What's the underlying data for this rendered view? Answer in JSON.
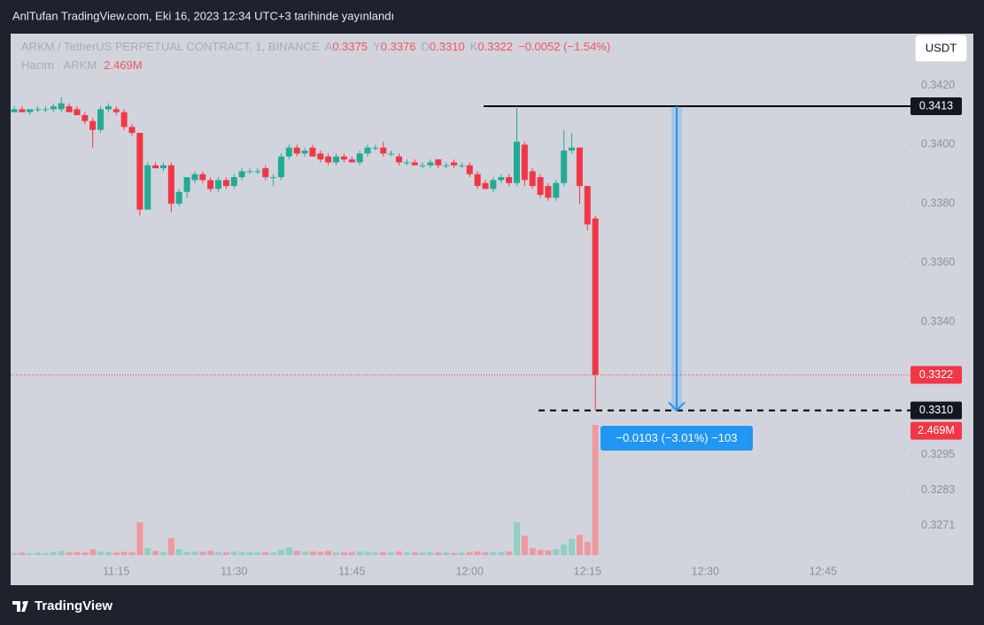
{
  "header": {
    "caption": "AnlTufan TradingView.com, Eki 16, 2023 12:34 UTC+3 tarihinde yayınlandı",
    "brand": "TradingView"
  },
  "chart_data": {
    "type": "candlestick",
    "title": "ARKM / TetherUS PERPETUAL CONTRACT, 1, BINANCE",
    "currency": "USDT",
    "legend": [
      {
        "label": "A",
        "value": 0.3375
      },
      {
        "label": "Y",
        "value": 0.3376
      },
      {
        "label": "D",
        "value": 0.331,
        "value_label": "0.3310"
      },
      {
        "label": "K",
        "value": 0.3322
      }
    ],
    "change_label": "−0.0052 (−1.54%)",
    "up_color": "#22ab94",
    "down_color": "#f23645",
    "x": [
      "11:02",
      "11:03",
      "11:04",
      "11:05",
      "11:06",
      "11:07",
      "11:08",
      "11:09",
      "11:10",
      "11:11",
      "11:12",
      "11:13",
      "11:14",
      "11:15",
      "11:16",
      "11:17",
      "11:18",
      "11:19",
      "11:20",
      "11:21",
      "11:22",
      "11:23",
      "11:24",
      "11:25",
      "11:26",
      "11:27",
      "11:28",
      "11:29",
      "11:30",
      "11:31",
      "11:32",
      "11:33",
      "11:34",
      "11:35",
      "11:36",
      "11:37",
      "11:38",
      "11:39",
      "11:40",
      "11:41",
      "11:42",
      "11:43",
      "11:44",
      "11:45",
      "11:46",
      "11:47",
      "11:48",
      "11:49",
      "11:50",
      "11:51",
      "11:52",
      "11:53",
      "11:54",
      "11:55",
      "11:56",
      "11:57",
      "11:58",
      "11:59",
      "12:00",
      "12:01",
      "12:02",
      "12:03",
      "12:04",
      "12:05",
      "12:06",
      "12:07",
      "12:08",
      "12:09",
      "12:10",
      "12:11",
      "12:12",
      "12:13",
      "12:14",
      "12:15",
      "12:16"
    ],
    "open": [
      0.3411,
      0.3412,
      0.3411,
      0.3412,
      0.3412,
      0.3412,
      0.3412,
      0.3413,
      0.3412,
      0.341,
      0.3408,
      0.3405,
      0.3412,
      0.3412,
      0.3411,
      0.3406,
      0.3404,
      0.3378,
      0.3393,
      0.3392,
      0.3393,
      0.338,
      0.3384,
      0.3388,
      0.339,
      0.3388,
      0.3385,
      0.3388,
      0.3386,
      0.3389,
      0.3391,
      0.3391,
      0.3392,
      0.3389,
      0.3389,
      0.3396,
      0.3399,
      0.3397,
      0.3399,
      0.3397,
      0.3396,
      0.3394,
      0.3396,
      0.3395,
      0.3394,
      0.3397,
      0.3399,
      0.3399,
      0.3397,
      0.3396,
      0.3394,
      0.3394,
      0.3393,
      0.3393,
      0.3395,
      0.3393,
      0.3394,
      0.3393,
      0.3393,
      0.339,
      0.3387,
      0.3385,
      0.3388,
      0.3389,
      0.3387,
      0.34,
      0.3391,
      0.3389,
      0.3386,
      0.3382,
      0.3387,
      0.3398,
      0.3399,
      0.3386,
      0.3375
    ],
    "high": [
      0.3413,
      0.3413,
      0.3412,
      0.3413,
      0.3413,
      0.3414,
      0.3416,
      0.3414,
      0.3413,
      0.3411,
      0.3409,
      0.3413,
      0.3414,
      0.3413,
      0.3412,
      0.3407,
      0.3404,
      0.3394,
      0.3394,
      0.3394,
      0.3394,
      0.3385,
      0.3389,
      0.3391,
      0.3391,
      0.3389,
      0.3389,
      0.3389,
      0.339,
      0.3392,
      0.3392,
      0.3392,
      0.3393,
      0.339,
      0.3397,
      0.34,
      0.34,
      0.3399,
      0.34,
      0.3398,
      0.3397,
      0.3397,
      0.3397,
      0.3396,
      0.3398,
      0.34,
      0.34,
      0.3401,
      0.3398,
      0.3397,
      0.3395,
      0.3395,
      0.3394,
      0.3395,
      0.3395,
      0.3394,
      0.3395,
      0.3394,
      0.3394,
      0.3391,
      0.3388,
      0.3389,
      0.339,
      0.339,
      0.3413,
      0.3401,
      0.3392,
      0.339,
      0.3387,
      0.3388,
      0.3405,
      0.3404,
      0.3399,
      0.3386,
      0.3376
    ],
    "low": [
      0.3411,
      0.3411,
      0.341,
      0.3411,
      0.3411,
      0.3411,
      0.3411,
      0.3411,
      0.341,
      0.3407,
      0.3399,
      0.3404,
      0.3411,
      0.341,
      0.3405,
      0.3403,
      0.3376,
      0.3378,
      0.3392,
      0.3391,
      0.3377,
      0.3379,
      0.3382,
      0.3387,
      0.3387,
      0.3384,
      0.3384,
      0.3385,
      0.3385,
      0.3388,
      0.339,
      0.339,
      0.3388,
      0.3386,
      0.3388,
      0.3395,
      0.3396,
      0.3396,
      0.3396,
      0.3394,
      0.3393,
      0.3393,
      0.3394,
      0.3394,
      0.3393,
      0.3396,
      0.3398,
      0.3396,
      0.3396,
      0.3393,
      0.3393,
      0.3393,
      0.3392,
      0.3392,
      0.3392,
      0.3392,
      0.3392,
      0.3392,
      0.3389,
      0.3385,
      0.3385,
      0.3384,
      0.3387,
      0.3386,
      0.3386,
      0.3386,
      0.3385,
      0.3382,
      0.3381,
      0.3381,
      0.3386,
      0.3397,
      0.338,
      0.3371,
      0.331
    ],
    "close": [
      0.3412,
      0.3411,
      0.3412,
      0.3412,
      0.3412,
      0.3413,
      0.3414,
      0.3411,
      0.341,
      0.3408,
      0.3405,
      0.3412,
      0.3413,
      0.3411,
      0.3406,
      0.3404,
      0.3378,
      0.3393,
      0.3392,
      0.3393,
      0.338,
      0.3384,
      0.3389,
      0.339,
      0.3388,
      0.3385,
      0.3388,
      0.3386,
      0.3389,
      0.3391,
      0.3391,
      0.3391,
      0.3389,
      0.3389,
      0.3396,
      0.3399,
      0.3397,
      0.3398,
      0.3396,
      0.3395,
      0.3394,
      0.3396,
      0.3395,
      0.3394,
      0.3397,
      0.3399,
      0.3399,
      0.3397,
      0.3397,
      0.3394,
      0.3394,
      0.3393,
      0.3393,
      0.3394,
      0.3393,
      0.3393,
      0.3393,
      0.3393,
      0.339,
      0.3386,
      0.3385,
      0.3388,
      0.3389,
      0.3387,
      0.3401,
      0.3388,
      0.3386,
      0.3383,
      0.3382,
      0.3387,
      0.3398,
      0.3399,
      0.3386,
      0.3373,
      0.3322
    ],
    "volume": {
      "name": "Hacim · ARKM",
      "up_color": "#8fcfc4",
      "down_color": "#f0989f",
      "values": [
        40000,
        45000,
        40000,
        50000,
        40000,
        60000,
        80000,
        50000,
        60000,
        50000,
        110000,
        70000,
        60000,
        50000,
        60000,
        50000,
        620000,
        130000,
        80000,
        60000,
        320000,
        110000,
        60000,
        70000,
        60000,
        80000,
        60000,
        50000,
        70000,
        60000,
        50000,
        50000,
        60000,
        50000,
        100000,
        150000,
        80000,
        60000,
        70000,
        60000,
        80000,
        50000,
        50000,
        60000,
        70000,
        60000,
        50000,
        60000,
        50000,
        70000,
        50000,
        50000,
        50000,
        60000,
        50000,
        50000,
        40000,
        50000,
        60000,
        70000,
        50000,
        60000,
        60000,
        70000,
        620000,
        370000,
        130000,
        100000,
        90000,
        110000,
        200000,
        310000,
        380000,
        250000,
        2469000
      ],
      "value_labels": [
        null,
        null,
        null,
        null,
        null,
        null,
        null,
        null,
        null,
        null,
        null,
        null,
        null,
        null,
        null,
        null,
        null,
        null,
        null,
        null,
        null,
        null,
        null,
        null,
        null,
        null,
        null,
        null,
        null,
        null,
        null,
        null,
        null,
        null,
        null,
        null,
        null,
        null,
        null,
        null,
        null,
        null,
        null,
        null,
        null,
        null,
        null,
        null,
        null,
        null,
        null,
        null,
        null,
        null,
        null,
        null,
        null,
        null,
        null,
        null,
        null,
        null,
        null,
        null,
        null,
        null,
        null,
        null,
        null,
        null,
        null,
        null,
        null,
        null,
        "2.469M"
      ]
    },
    "ylim": [
      0.3261,
      0.3437
    ],
    "yticks": [
      {
        "value": 0.342,
        "label": "0.3420"
      },
      {
        "value": 0.34,
        "label": "0.3400"
      },
      {
        "value": 0.338,
        "label": "0.3380"
      },
      {
        "value": 0.336,
        "label": "0.3360"
      },
      {
        "value": 0.334,
        "label": "0.3340"
      },
      0.3295,
      0.3283,
      0.3271
    ],
    "xticks": [
      "11:15",
      "11:30",
      "11:45",
      "12:00",
      "12:15",
      "12:30",
      "12:45"
    ],
    "price_lines": [
      {
        "value": 0.3413,
        "style": "solid"
      },
      {
        "value": 0.331,
        "label": "0.3310",
        "style": "dashed"
      }
    ],
    "measure": {
      "label": "−0.0103 (−3.01%) −103"
    }
  }
}
